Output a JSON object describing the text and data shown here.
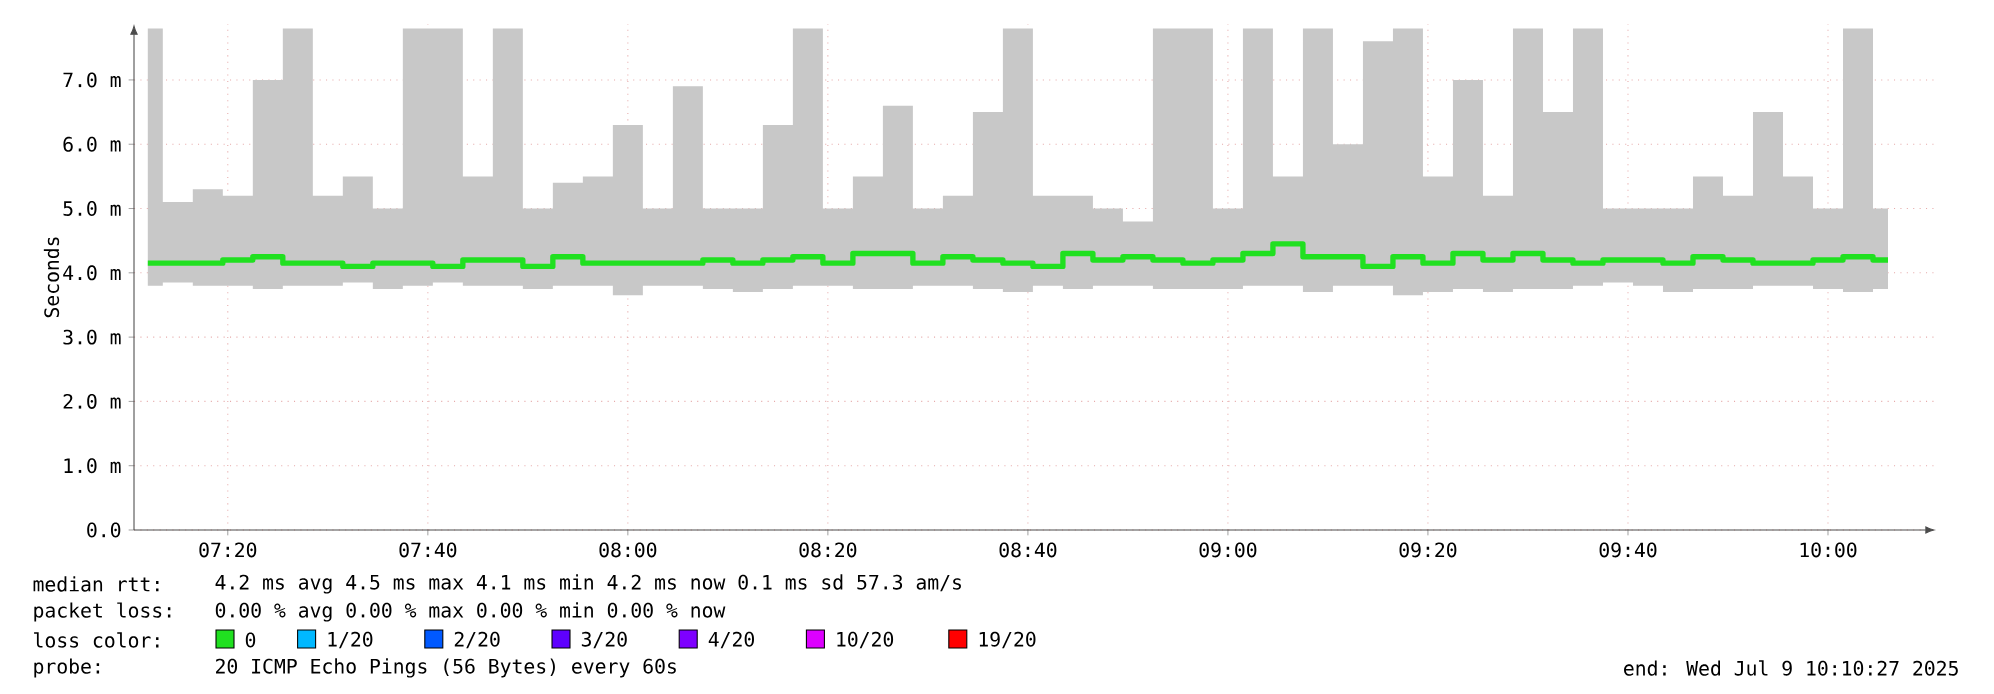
{
  "chart_data": {
    "type": "step",
    "ylabel": "Seconds",
    "x": [
      7.2,
      7.25,
      7.3,
      7.35,
      7.4,
      7.45,
      7.5,
      7.55,
      7.6,
      7.65,
      7.7,
      7.75,
      7.8,
      7.85,
      7.9,
      7.95,
      8.0,
      8.05,
      8.1,
      8.15,
      8.2,
      8.25,
      8.3,
      8.35,
      8.4,
      8.45,
      8.5,
      8.55,
      8.6,
      8.65,
      8.7,
      8.75,
      8.8,
      8.85,
      8.9,
      8.95,
      9.0,
      9.05,
      9.1,
      9.15,
      9.2,
      9.25,
      9.3,
      9.35,
      9.4,
      9.45,
      9.5,
      9.55,
      9.6,
      9.65,
      9.7,
      9.75,
      9.8,
      9.85,
      9.9,
      9.95,
      10.0,
      10.05,
      10.1
    ],
    "series": [
      {
        "name": "0",
        "color": "#20e020",
        "values": [
          4.15,
          4.15,
          4.15,
          4.2,
          4.25,
          4.15,
          4.15,
          4.1,
          4.15,
          4.15,
          4.1,
          4.2,
          4.2,
          4.1,
          4.25,
          4.15,
          4.15,
          4.15,
          4.15,
          4.2,
          4.15,
          4.2,
          4.25,
          4.15,
          4.3,
          4.3,
          4.15,
          4.25,
          4.2,
          4.15,
          4.1,
          4.3,
          4.2,
          4.25,
          4.2,
          4.15,
          4.2,
          4.3,
          4.45,
          4.25,
          4.25,
          4.1,
          4.25,
          4.15,
          4.3,
          4.2,
          4.3,
          4.2,
          4.15,
          4.2,
          4.2,
          4.15,
          4.25,
          4.2,
          4.15,
          4.15,
          4.2,
          4.25,
          4.2
        ],
        "lower": [
          3.8,
          3.85,
          3.8,
          3.8,
          3.75,
          3.8,
          3.8,
          3.85,
          3.75,
          3.8,
          3.85,
          3.8,
          3.8,
          3.75,
          3.8,
          3.8,
          3.65,
          3.8,
          3.8,
          3.75,
          3.7,
          3.75,
          3.8,
          3.8,
          3.75,
          3.75,
          3.8,
          3.8,
          3.75,
          3.7,
          3.8,
          3.75,
          3.8,
          3.8,
          3.75,
          3.75,
          3.75,
          3.8,
          3.8,
          3.7,
          3.8,
          3.8,
          3.65,
          3.7,
          3.75,
          3.7,
          3.75,
          3.75,
          3.8,
          3.85,
          3.8,
          3.7,
          3.75,
          3.75,
          3.8,
          3.8,
          3.75,
          3.7,
          3.75
        ],
        "upper": [
          7.8,
          5.1,
          5.3,
          5.2,
          7.0,
          7.8,
          5.2,
          5.5,
          5.0,
          7.8,
          7.8,
          5.5,
          7.8,
          5.0,
          5.4,
          5.5,
          6.3,
          5.0,
          6.9,
          5.0,
          5.0,
          6.3,
          7.8,
          5.0,
          5.5,
          6.6,
          5.0,
          5.2,
          6.5,
          7.8,
          5.2,
          5.2,
          5.0,
          4.8,
          7.8,
          7.8,
          5.0,
          7.8,
          5.5,
          7.8,
          6.0,
          7.6,
          7.8,
          5.5,
          7.0,
          5.2,
          7.8,
          6.5,
          7.8,
          5.0,
          5.0,
          5.0,
          5.5,
          5.2,
          6.5,
          5.5,
          5.0,
          7.8,
          5.0
        ]
      },
      {
        "name": "1/20",
        "color": "#00b8ff",
        "values": [
          null,
          null,
          null,
          null,
          null,
          null,
          null,
          null,
          null,
          null,
          null,
          null,
          null,
          null,
          null,
          null,
          null,
          null,
          null,
          null,
          null,
          null,
          null,
          null,
          null,
          null,
          null,
          null,
          null,
          null,
          null,
          null,
          null,
          null,
          null,
          null,
          null,
          null,
          null,
          null,
          null,
          null,
          null,
          null,
          null,
          null,
          null,
          null,
          null,
          null,
          null,
          null,
          null,
          null,
          null,
          null,
          null,
          null,
          null
        ]
      },
      {
        "name": "2/20",
        "color": "#0059ff",
        "values": [
          null,
          null,
          null,
          null,
          null,
          null,
          null,
          null,
          null,
          null,
          null,
          null,
          null,
          null,
          null,
          null,
          null,
          null,
          null,
          null,
          null,
          null,
          null,
          null,
          null,
          null,
          null,
          null,
          null,
          null,
          null,
          null,
          null,
          null,
          null,
          null,
          null,
          null,
          null,
          null,
          null,
          null,
          null,
          null,
          null,
          null,
          null,
          null,
          null,
          null,
          null,
          null,
          null,
          null,
          null,
          null,
          null,
          null,
          null
        ]
      },
      {
        "name": "3/20",
        "color": "#5e00ff",
        "values": [
          null,
          null,
          null,
          null,
          null,
          null,
          null,
          null,
          null,
          null,
          null,
          null,
          null,
          null,
          null,
          null,
          null,
          null,
          null,
          null,
          null,
          null,
          null,
          null,
          null,
          null,
          null,
          null,
          null,
          null,
          null,
          null,
          null,
          null,
          null,
          null,
          null,
          null,
          null,
          null,
          null,
          null,
          null,
          null,
          null,
          null,
          null,
          null,
          null,
          null,
          null,
          null,
          null,
          null,
          null,
          null,
          null,
          null,
          null
        ]
      },
      {
        "name": "4/20",
        "color": "#7e00ff",
        "values": [
          null,
          null,
          null,
          null,
          null,
          null,
          null,
          null,
          null,
          null,
          null,
          null,
          null,
          null,
          null,
          null,
          null,
          null,
          null,
          null,
          null,
          null,
          null,
          null,
          null,
          null,
          null,
          null,
          null,
          null,
          null,
          null,
          null,
          null,
          null,
          null,
          null,
          null,
          null,
          null,
          null,
          null,
          null,
          null,
          null,
          null,
          null,
          null,
          null,
          null,
          null,
          null,
          null,
          null,
          null,
          null,
          null,
          null,
          null
        ]
      },
      {
        "name": "10/20",
        "color": "#dd00ff",
        "values": [
          null,
          null,
          null,
          null,
          null,
          null,
          null,
          null,
          null,
          null,
          null,
          null,
          null,
          null,
          null,
          null,
          null,
          null,
          null,
          null,
          null,
          null,
          null,
          null,
          null,
          null,
          null,
          null,
          null,
          null,
          null,
          null,
          null,
          null,
          null,
          null,
          null,
          null,
          null,
          null,
          null,
          null,
          null,
          null,
          null,
          null,
          null,
          null,
          null,
          null,
          null,
          null,
          null,
          null,
          null,
          null,
          null,
          null,
          null
        ]
      },
      {
        "name": "19/20",
        "color": "#ff0000",
        "values": [
          null,
          null,
          null,
          null,
          null,
          null,
          null,
          null,
          null,
          null,
          null,
          null,
          null,
          null,
          null,
          null,
          null,
          null,
          null,
          null,
          null,
          null,
          null,
          null,
          null,
          null,
          null,
          null,
          null,
          null,
          null,
          null,
          null,
          null,
          null,
          null,
          null,
          null,
          null,
          null,
          null,
          null,
          null,
          null,
          null,
          null,
          null,
          null,
          null,
          null,
          null,
          null,
          null,
          null,
          null,
          null,
          null,
          null,
          null
        ]
      }
    ],
    "xlim": [
      7.177,
      10.18
    ],
    "xticks": [
      {
        "value": 7.3333,
        "label": "07:20"
      },
      {
        "value": 7.6667,
        "label": "07:40"
      },
      {
        "value": 8.0,
        "label": "08:00"
      },
      {
        "value": 8.3333,
        "label": "08:20"
      },
      {
        "value": 8.6667,
        "label": "08:40"
      },
      {
        "value": 9.0,
        "label": "09:00"
      },
      {
        "value": 9.3333,
        "label": "09:20"
      },
      {
        "value": 9.6667,
        "label": "09:40"
      },
      {
        "value": 10.0,
        "label": "10:00"
      }
    ],
    "ylim": [
      0,
      7.87
    ],
    "yticks": [
      {
        "value": 0,
        "label": "0.0"
      },
      {
        "value": 1,
        "label": "1.0 m"
      },
      {
        "value": 2,
        "label": "2.0 m"
      },
      {
        "value": 3,
        "label": "3.0 m"
      },
      {
        "value": 4,
        "label": "4.0 m"
      },
      {
        "value": 5,
        "label": "5.0 m"
      },
      {
        "value": 6,
        "label": "6.0 m"
      },
      {
        "value": 7,
        "label": "7.0 m"
      }
    ],
    "grid": true,
    "legend": "bottom left",
    "annotations": [
      "median rtt:",
      "4.2 ms avg  4.5 ms max  4.1 ms min  4.2 ms now  0.1 ms sd  57.3   am/s",
      "packet loss:",
      "0.00 % avg  0.00 % max  0.00 % min  0.00 % now",
      "loss color:",
      "probe:",
      "20 ICMP Echo Pings (56 Bytes) every 60s",
      "end: Wed Jul  9 10:10:27 2025"
    ]
  }
}
